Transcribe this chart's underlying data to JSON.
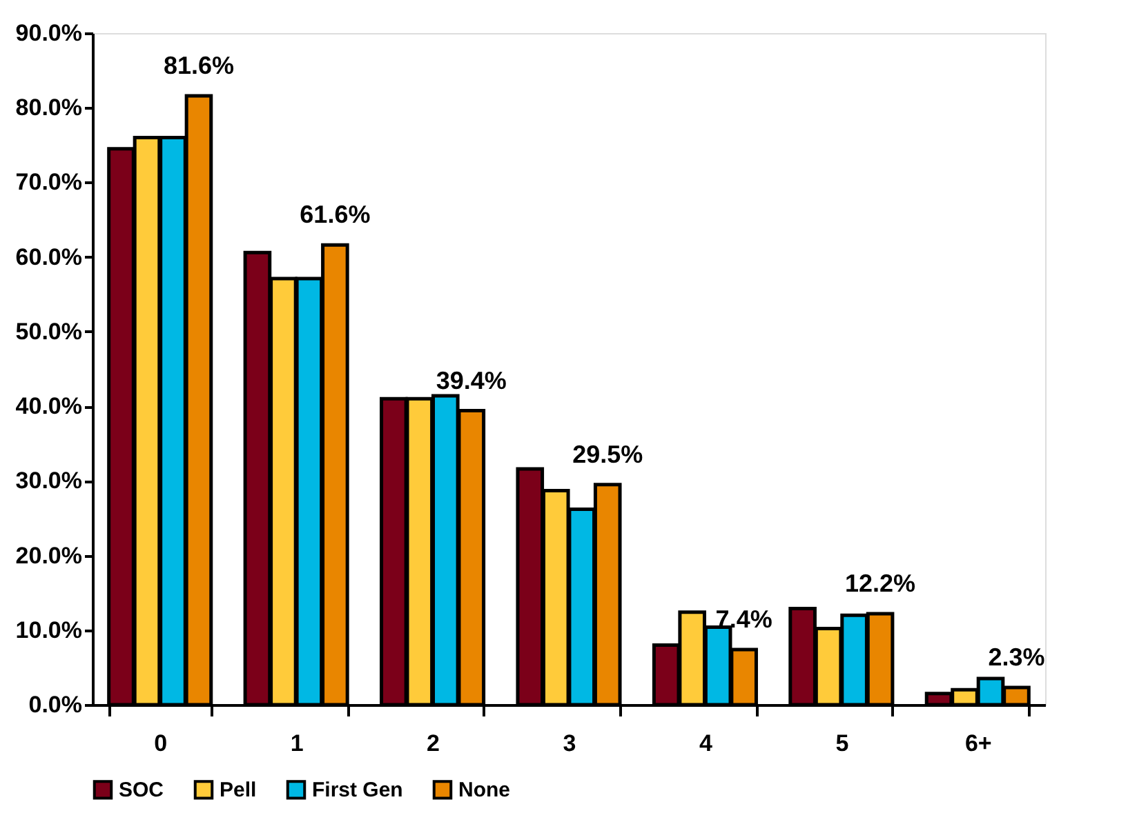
{
  "chart_data": {
    "type": "bar",
    "categories": [
      "0",
      "1",
      "2",
      "3",
      "4",
      "5",
      "6+"
    ],
    "series": [
      {
        "name": "SOC",
        "color": "#7b0019",
        "values": [
          74.5,
          60.6,
          41.0,
          31.6,
          8.0,
          12.9,
          1.5
        ]
      },
      {
        "name": "Pell",
        "color": "#ffcb3a",
        "values": [
          76.0,
          57.1,
          41.0,
          28.7,
          12.4,
          10.2,
          2.0
        ]
      },
      {
        "name": "First Gen",
        "color": "#00b8e4",
        "values": [
          76.0,
          57.1,
          41.4,
          26.2,
          10.4,
          12.0,
          3.5
        ]
      },
      {
        "name": "None",
        "color": "#e98600",
        "values": [
          81.6,
          61.6,
          39.4,
          29.5,
          7.4,
          12.2,
          2.3
        ],
        "value_labels": [
          "81.6%",
          "61.6%",
          "39.4%",
          "29.5%",
          "7.4%",
          "12.2%",
          "2.3%"
        ]
      }
    ],
    "ylim": [
      0,
      90
    ],
    "yticks": [
      {
        "value": 0,
        "label": "0.0%"
      },
      {
        "value": 10,
        "label": "10.0%"
      },
      {
        "value": 20,
        "label": "20.0%"
      },
      {
        "value": 30,
        "label": "30.0%"
      },
      {
        "value": 40,
        "label": "40.0%"
      },
      {
        "value": 50,
        "label": "50.0%"
      },
      {
        "value": 60,
        "label": "60.0%"
      },
      {
        "value": 70,
        "label": "70.0%"
      },
      {
        "value": 80,
        "label": "80.0%"
      },
      {
        "value": 90,
        "label": "90.0%"
      }
    ],
    "grid": false,
    "legend": "bottom"
  }
}
